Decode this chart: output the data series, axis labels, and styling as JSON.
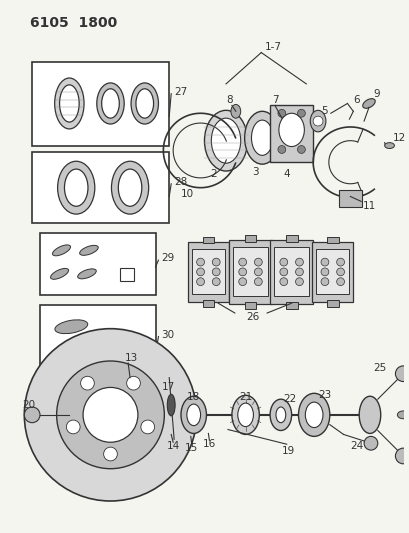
{
  "title": "6105  1800",
  "bg_color": "#f5f5f0",
  "line_color": "#333333",
  "title_fontsize": 10,
  "label_fontsize": 7.5,
  "fig_w": 4.1,
  "fig_h": 5.33,
  "dpi": 100
}
